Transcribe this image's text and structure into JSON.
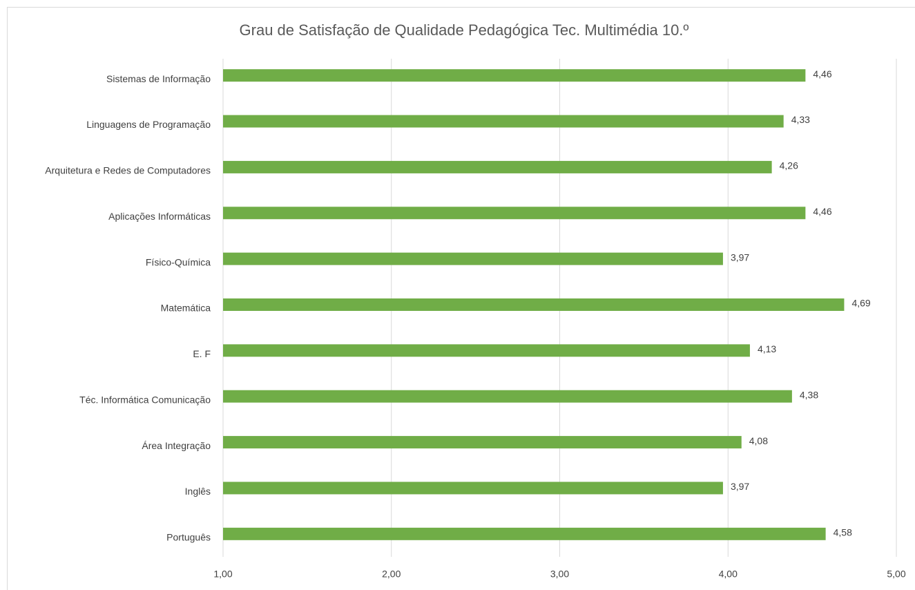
{
  "chart_data": {
    "type": "hbar",
    "title": "Grau de Satisfação de Qualidade Pedagógica Tec. Multimédia 10.º",
    "categories": [
      "Sistemas de Informação",
      "Linguagens de Programação",
      "Arquitetura e Redes de Computadores",
      "Aplicações Informáticas",
      "Físico-Química",
      "Matemática",
      "E. F",
      "Téc. Informática Comunicação",
      "Área Integração",
      "Inglês",
      "Português"
    ],
    "values": [
      4.46,
      4.33,
      4.26,
      4.46,
      3.97,
      4.69,
      4.13,
      4.38,
      4.08,
      3.97,
      4.58
    ],
    "value_labels": [
      "4,46",
      "4,33",
      "4,26",
      "4,46",
      "3,97",
      "4,69",
      "4,13",
      "4,38",
      "4,08",
      "3,97",
      "4,58"
    ],
    "color": "#70ad47",
    "xlim": [
      1,
      5
    ],
    "xticks": [
      {
        "value": 1,
        "label": "1,00"
      },
      {
        "value": 2,
        "label": "2,00"
      },
      {
        "value": 3,
        "label": "3,00"
      },
      {
        "value": 4,
        "label": "4,00"
      },
      {
        "value": 5,
        "label": "5,00"
      }
    ],
    "grid": true
  }
}
